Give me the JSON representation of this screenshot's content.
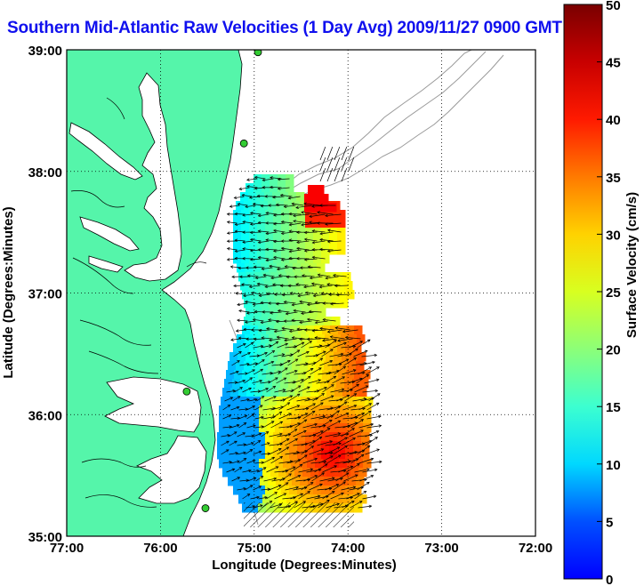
{
  "title": "Southern Mid-Atlantic Raw Velocities (1 Day Avg) 2009/11/27 0900 GMT",
  "map": {
    "xlabel": "Longitude (Degrees:Minutes)",
    "ylabel": "Latitude (Degrees:Minutes)",
    "lon_range": [
      -77,
      -72
    ],
    "lat_range": [
      35,
      39
    ],
    "x_ticks": [
      "77:00",
      "76:00",
      "75:00",
      "74:00",
      "73:00",
      "72:00"
    ],
    "y_ticks": [
      "35:00",
      "36:00",
      "37:00",
      "38:00",
      "39:00"
    ],
    "grid": "dotted",
    "land_color": "#55f5aa",
    "coast_color": "#000000",
    "bathymetry_color": "#9a9a9a",
    "arrow_color": "#000000",
    "radar_sites": [
      {
        "lon": -74.96,
        "lat": 38.98
      },
      {
        "lon": -75.11,
        "lat": 38.23
      },
      {
        "lon": -75.72,
        "lat": 36.19
      },
      {
        "lon": -75.52,
        "lat": 35.23
      }
    ]
  },
  "colorbar": {
    "label": "Surface Velocity (cm/s)",
    "min": 0,
    "max": 50,
    "ticks": [
      "0",
      "5",
      "10",
      "15",
      "20",
      "25",
      "30",
      "35",
      "40",
      "45",
      "50"
    ],
    "colormap": "jet"
  }
}
